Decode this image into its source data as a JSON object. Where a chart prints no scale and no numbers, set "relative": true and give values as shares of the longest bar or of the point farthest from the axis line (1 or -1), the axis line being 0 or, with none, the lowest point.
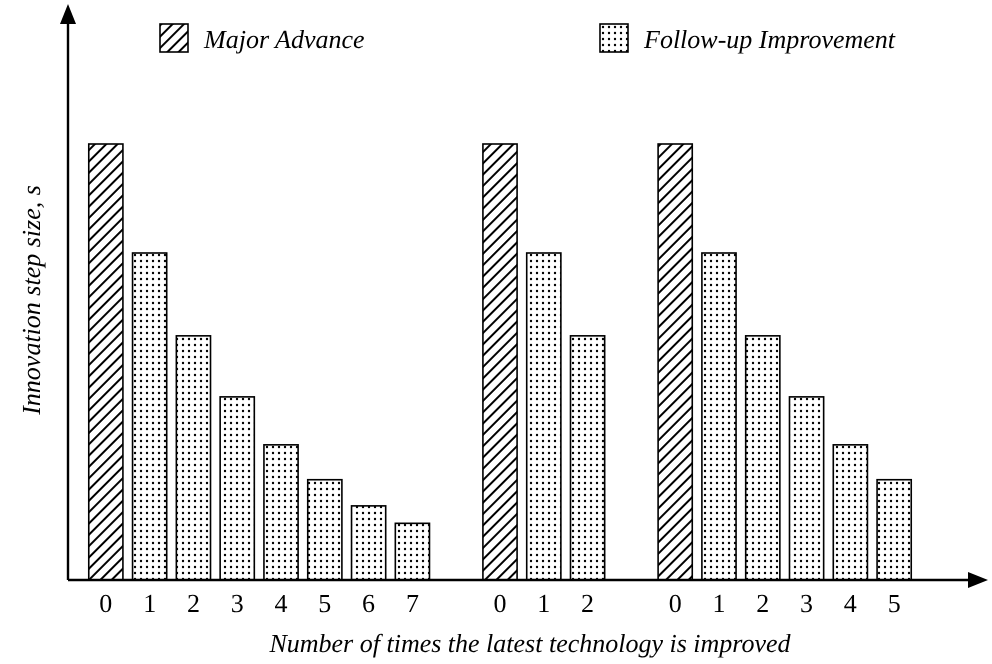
{
  "chart_data": {
    "type": "bar",
    "relative": true,
    "xlabel": "Number of times the latest technology is improved",
    "ylabel": "Innovation step size, s",
    "legend": "top",
    "categories": [
      "0",
      "1",
      "2",
      "3",
      "4",
      "5",
      "6",
      "7",
      null,
      "0",
      "1",
      "2",
      null,
      "0",
      "1",
      "2",
      "3",
      "4",
      "5"
    ],
    "series": [
      {
        "name": "Major Advance",
        "color": "#000000",
        "values": [
          1,
          null,
          null,
          null,
          null,
          null,
          null,
          null,
          null,
          1,
          null,
          null,
          null,
          1,
          null,
          null,
          null,
          null,
          null
        ]
      },
      {
        "name": "Follow-up Improvement",
        "color": "#000000",
        "values": [
          null,
          0.75,
          0.56,
          0.42,
          0.31,
          0.23,
          0.17,
          0.13,
          null,
          null,
          0.75,
          0.56,
          null,
          null,
          0.75,
          0.56,
          0.42,
          0.31,
          0.23
        ]
      }
    ]
  }
}
